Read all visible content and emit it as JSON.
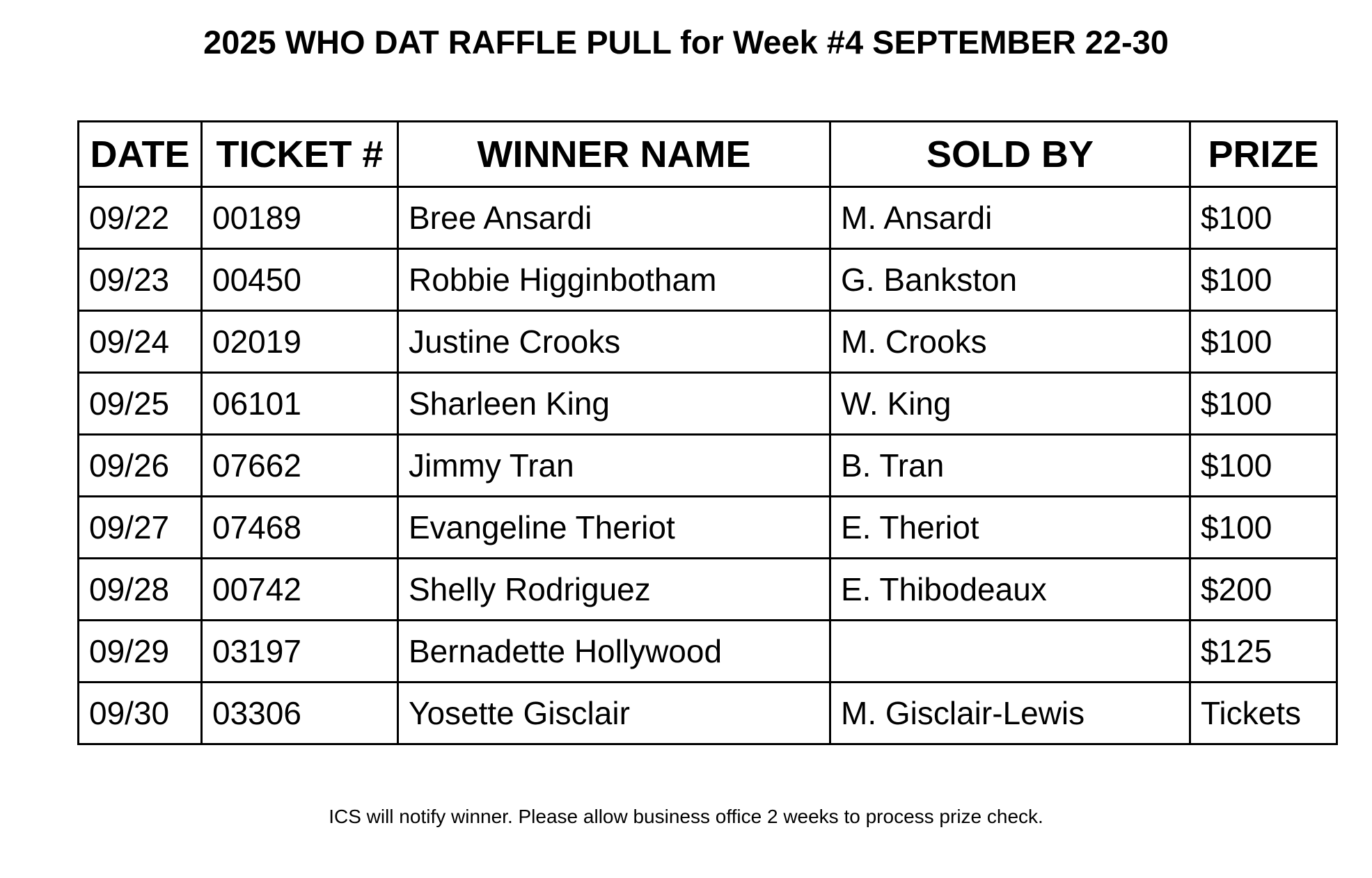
{
  "title": "2025 WHO DAT RAFFLE PULL for Week #4 SEPTEMBER 22-30",
  "table": {
    "headers": [
      "DATE",
      "TICKET #",
      "WINNER NAME",
      "SOLD BY",
      "PRIZE"
    ],
    "rows": [
      [
        "09/22",
        "00189",
        "Bree Ansardi",
        "M. Ansardi",
        "$100"
      ],
      [
        "09/23",
        "00450",
        "Robbie Higginbotham",
        "G. Bankston",
        "$100"
      ],
      [
        "09/24",
        "02019",
        "Justine Crooks",
        "M. Crooks",
        "$100"
      ],
      [
        "09/25",
        "06101",
        "Sharleen King",
        "W. King",
        "$100"
      ],
      [
        "09/26",
        "07662",
        "Jimmy Tran",
        "B. Tran",
        "$100"
      ],
      [
        "09/27",
        "07468",
        "Evangeline Theriot",
        "E. Theriot",
        "$100"
      ],
      [
        "09/28",
        "00742",
        "Shelly Rodriguez",
        "E. Thibodeaux",
        "$200"
      ],
      [
        "09/29",
        "03197",
        "Bernadette Hollywood",
        "",
        "$125"
      ],
      [
        "09/30",
        "03306",
        "Yosette Gisclair",
        "M. Gisclair-Lewis",
        "Tickets"
      ]
    ]
  },
  "footer": "ICS will notify winner. Please allow business office 2 weeks to process prize check."
}
